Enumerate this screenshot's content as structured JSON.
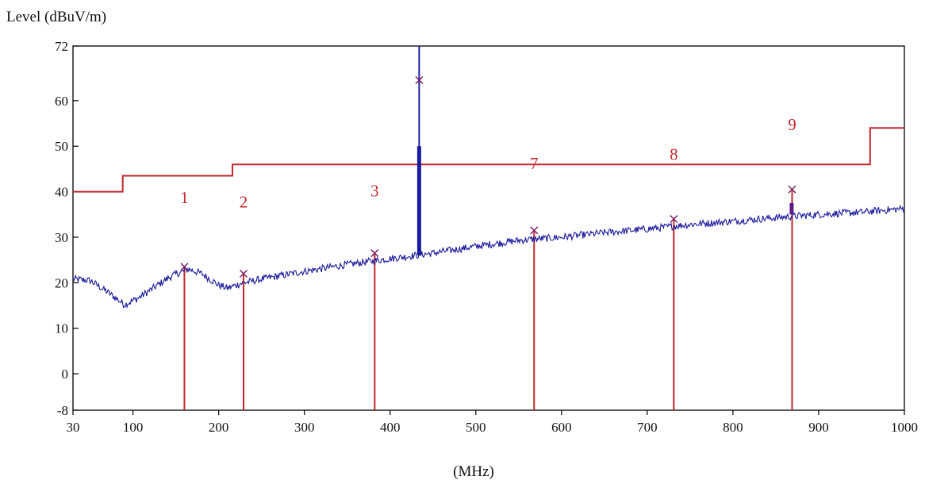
{
  "chart_data": {
    "type": "line",
    "ylabel": "Level (dBuV/m)",
    "xlabel": "(MHz)",
    "xlim": [
      30,
      1000
    ],
    "ylim": [
      -8,
      72
    ],
    "x_ticks": [
      30,
      100,
      200,
      300,
      400,
      500,
      600,
      700,
      800,
      900,
      1000
    ],
    "y_ticks": [
      72,
      60,
      50,
      40,
      30,
      20,
      10,
      0,
      -8
    ],
    "y_tick_labels": [
      "72",
      "60",
      "50",
      "40",
      "30",
      "20",
      "10",
      "0",
      "-8"
    ],
    "limit_line": {
      "color": "#c0282d",
      "points": [
        [
          30,
          40
        ],
        [
          88,
          40
        ],
        [
          88,
          43.5
        ],
        [
          216,
          43.5
        ],
        [
          216,
          46
        ],
        [
          960,
          46
        ],
        [
          960,
          54
        ],
        [
          1000,
          54
        ]
      ]
    },
    "noise_floor": {
      "color": "#1a1a9c",
      "points": [
        [
          30,
          20.8
        ],
        [
          50,
          20.5
        ],
        [
          70,
          18
        ],
        [
          90,
          15.2
        ],
        [
          105,
          16.5
        ],
        [
          125,
          19
        ],
        [
          145,
          21.5
        ],
        [
          165,
          23
        ],
        [
          180,
          22
        ],
        [
          200,
          19.5
        ],
        [
          210,
          18.8
        ],
        [
          225,
          19.8
        ],
        [
          250,
          20.8
        ],
        [
          300,
          22.5
        ],
        [
          350,
          24
        ],
        [
          400,
          25.3
        ],
        [
          450,
          26.5
        ],
        [
          500,
          28
        ],
        [
          550,
          29.3
        ],
        [
          600,
          30
        ],
        [
          650,
          31
        ],
        [
          700,
          31.8
        ],
        [
          750,
          32.8
        ],
        [
          800,
          33.5
        ],
        [
          850,
          34.3
        ],
        [
          900,
          35
        ],
        [
          950,
          35.5
        ],
        [
          1000,
          36.3
        ]
      ]
    },
    "emission_spikes": [
      {
        "x": 433.9,
        "bottom": 26,
        "thick_top": 50,
        "thin_top": 72,
        "color": "#1a1a9c"
      },
      {
        "x": 868.5,
        "bottom": 35,
        "thick_top": 37.5,
        "thin_top": 37.5,
        "color": "#5a1a8c"
      }
    ],
    "markers": [
      {
        "label": "1",
        "freq": 160,
        "level": 23.5,
        "label_level": 37.5
      },
      {
        "label": "2",
        "freq": 229,
        "level": 22,
        "label_level": 36.5
      },
      {
        "label": "3",
        "freq": 382,
        "level": 26.5,
        "label_level": 39
      },
      {
        "label": "",
        "freq": 434,
        "level": 64.5,
        "label_level": null
      },
      {
        "label": "7",
        "freq": 568,
        "level": 31.5,
        "label_level": 45
      },
      {
        "label": "8",
        "freq": 731,
        "level": 34,
        "label_level": 47
      },
      {
        "label": "9",
        "freq": 869,
        "level": 40.5,
        "label_level": 53.5
      }
    ],
    "marker_color": "#c0282d",
    "cross_color": "#7a1f6a",
    "grid": false,
    "legend": "none"
  }
}
